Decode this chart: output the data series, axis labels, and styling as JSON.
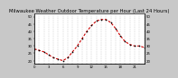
{
  "title": "Milwaukee Weather Outdoor Temperature per Hour (Last 24 Hours)",
  "hours": [
    0,
    1,
    2,
    3,
    4,
    5,
    6,
    7,
    8,
    9,
    10,
    11,
    12,
    13,
    14,
    15,
    16,
    17,
    18,
    19,
    20,
    21,
    22,
    23
  ],
  "temps": [
    28,
    27,
    26,
    24,
    22,
    21,
    20,
    22,
    26,
    30,
    35,
    40,
    44,
    47,
    48,
    48,
    46,
    42,
    37,
    33,
    31,
    30,
    30,
    29
  ],
  "line_color": "#cc0000",
  "dot_color": "#000000",
  "bg_color": "#c8c8c8",
  "plot_bg": "#ffffff",
  "grid_color": "#888888",
  "title_bg": "#c8c8c8",
  "ylim": [
    18,
    52
  ],
  "xlim": [
    0,
    23
  ],
  "ytick_values": [
    20,
    25,
    30,
    35,
    40,
    45,
    50
  ],
  "title_fontsize": 3.8,
  "tick_fontsize": 2.8,
  "line_width": 0.8,
  "marker_size": 1.2
}
